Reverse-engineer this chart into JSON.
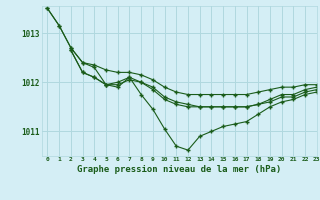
{
  "title": "Graphe pression niveau de la mer (hPa)",
  "background_color": "#d4eef5",
  "grid_color": "#b0d8df",
  "line_color": "#1a5c1a",
  "xlim": [
    -0.5,
    23
  ],
  "ylim": [
    1010.5,
    1013.55
  ],
  "yticks": [
    1011,
    1012,
    1013
  ],
  "xticks": [
    0,
    1,
    2,
    3,
    4,
    5,
    6,
    7,
    8,
    9,
    10,
    11,
    12,
    13,
    14,
    15,
    16,
    17,
    18,
    19,
    20,
    21,
    22,
    23
  ],
  "line1_x": [
    0,
    1,
    2,
    3,
    4,
    5,
    6,
    7,
    8,
    9,
    10,
    11,
    12,
    13,
    14,
    15,
    16,
    17,
    18,
    19,
    20,
    21,
    22,
    23
  ],
  "line1_y": [
    1013.5,
    1013.15,
    1012.7,
    1012.4,
    1012.35,
    1012.25,
    1012.2,
    1012.2,
    1012.15,
    1012.05,
    1011.9,
    1011.8,
    1011.75,
    1011.75,
    1011.75,
    1011.75,
    1011.75,
    1011.75,
    1011.8,
    1011.85,
    1011.9,
    1011.9,
    1011.95,
    1011.95
  ],
  "line2_x": [
    0,
    1,
    2,
    3,
    4,
    5,
    6,
    7,
    8,
    9,
    10,
    11,
    12,
    13,
    14,
    15,
    16,
    17,
    18,
    19,
    20,
    21,
    22,
    23
  ],
  "line2_y": [
    1013.5,
    1013.15,
    1012.7,
    1012.4,
    1012.3,
    1011.95,
    1011.9,
    1012.1,
    1011.75,
    1011.45,
    1011.05,
    1010.7,
    1010.62,
    1010.9,
    1011.0,
    1011.1,
    1011.15,
    1011.2,
    1011.35,
    1011.5,
    1011.6,
    1011.65,
    1011.75,
    1011.8
  ],
  "line3_x": [
    2,
    3,
    4,
    5,
    6,
    7,
    8,
    9,
    10,
    11,
    12,
    13,
    14,
    15,
    16,
    17,
    18,
    19,
    20,
    21,
    22,
    23
  ],
  "line3_y": [
    1012.65,
    1012.2,
    1012.1,
    1011.95,
    1011.95,
    1012.05,
    1012.0,
    1011.85,
    1011.65,
    1011.55,
    1011.5,
    1011.5,
    1011.5,
    1011.5,
    1011.5,
    1011.5,
    1011.55,
    1011.6,
    1011.7,
    1011.7,
    1011.8,
    1011.85
  ],
  "line4_x": [
    2,
    3,
    4,
    5,
    6,
    7,
    8,
    9,
    10,
    11,
    12,
    13,
    14,
    15,
    16,
    17,
    18,
    19,
    20,
    21,
    22,
    23
  ],
  "line4_y": [
    1012.65,
    1012.2,
    1012.1,
    1011.95,
    1012.0,
    1012.1,
    1012.0,
    1011.9,
    1011.7,
    1011.6,
    1011.55,
    1011.5,
    1011.5,
    1011.5,
    1011.5,
    1011.5,
    1011.55,
    1011.65,
    1011.75,
    1011.75,
    1011.85,
    1011.9
  ]
}
